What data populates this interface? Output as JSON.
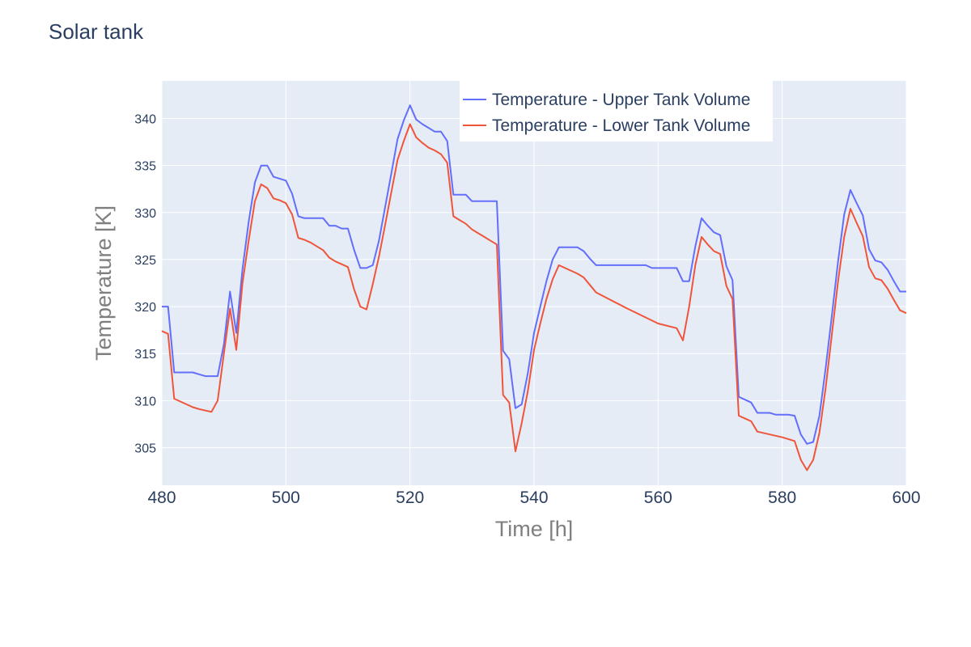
{
  "title": "Solar tank",
  "colors": {
    "upper": "#636efa",
    "lower": "#ef553b",
    "plot_bg": "#e5ecf6",
    "grid": "#ffffff"
  },
  "chart_data": {
    "type": "line",
    "title": "Solar tank",
    "xlabel": "Time [h]",
    "ylabel": "Temperature [K]",
    "xlim": [
      480,
      600
    ],
    "ylim": [
      301,
      344
    ],
    "xticks": [
      480,
      500,
      520,
      540,
      560,
      580,
      600
    ],
    "yticks": [
      305,
      310,
      315,
      320,
      325,
      330,
      335,
      340
    ],
    "grid": true,
    "legend_position": "top-right",
    "series": [
      {
        "name": "Temperature - Upper Tank Volume",
        "color": "#636efa",
        "x": [
          480,
          481,
          482,
          483,
          484,
          485,
          486,
          487,
          488,
          489,
          490,
          491,
          492,
          493,
          494,
          495,
          496,
          497,
          498,
          499,
          500,
          501,
          502,
          503,
          504,
          505,
          506,
          507,
          508,
          509,
          510,
          511,
          512,
          513,
          514,
          515,
          516,
          517,
          518,
          519,
          520,
          521,
          522,
          523,
          524,
          525,
          526,
          527,
          528,
          529,
          530,
          531,
          532,
          533,
          534,
          535,
          536,
          537,
          538,
          539,
          540,
          541,
          542,
          543,
          544,
          545,
          546,
          547,
          548,
          549,
          550,
          551,
          552,
          553,
          554,
          555,
          556,
          557,
          558,
          559,
          560,
          561,
          562,
          563,
          564,
          565,
          566,
          567,
          568,
          569,
          570,
          571,
          572,
          573,
          574,
          575,
          576,
          577,
          578,
          579,
          580,
          581,
          582,
          583,
          584,
          585,
          586,
          587,
          588,
          589,
          590,
          591,
          592,
          593,
          594,
          595,
          596,
          597,
          598,
          599,
          600
        ],
        "y": [
          320.0,
          320.0,
          313.0,
          313.0,
          313.0,
          313.0,
          312.8,
          312.6,
          312.6,
          312.6,
          316.0,
          321.6,
          317.2,
          324.0,
          329.0,
          333.2,
          335.0,
          335.0,
          333.8,
          333.6,
          333.4,
          332.0,
          329.6,
          329.4,
          329.4,
          329.4,
          329.4,
          328.6,
          328.6,
          328.3,
          328.3,
          326.0,
          324.1,
          324.1,
          324.4,
          327.0,
          330.6,
          334.2,
          337.8,
          339.8,
          341.4,
          339.9,
          339.4,
          339.0,
          338.6,
          338.6,
          337.6,
          331.9,
          331.9,
          331.9,
          331.2,
          331.2,
          331.2,
          331.2,
          331.2,
          315.3,
          314.4,
          309.2,
          309.6,
          312.9,
          317.2,
          320.0,
          322.7,
          325.0,
          326.3,
          326.3,
          326.3,
          326.3,
          325.9,
          325.1,
          324.4,
          324.4,
          324.4,
          324.4,
          324.4,
          324.4,
          324.4,
          324.4,
          324.4,
          324.1,
          324.1,
          324.1,
          324.1,
          324.1,
          322.7,
          322.7,
          326.4,
          329.4,
          328.6,
          327.9,
          327.6,
          324.3,
          322.8,
          310.4,
          310.1,
          309.8,
          308.7,
          308.7,
          308.7,
          308.5,
          308.5,
          308.5,
          308.4,
          306.4,
          305.4,
          305.6,
          308.4,
          313.4,
          319.0,
          324.8,
          329.8,
          332.4,
          331.0,
          329.7,
          326.1,
          324.9,
          324.7,
          323.9,
          322.7,
          321.6,
          321.6
        ]
      },
      {
        "name": "Temperature - Lower Tank Volume",
        "color": "#ef553b",
        "x": [
          480,
          481,
          482,
          485,
          486,
          488,
          489,
          490,
          491,
          492,
          493,
          494,
          495,
          496,
          497,
          498,
          499,
          500,
          501,
          502,
          503,
          504,
          505,
          506,
          507,
          508,
          509,
          510,
          511,
          512,
          513,
          514,
          515,
          516,
          517,
          518,
          519,
          520,
          521,
          522,
          523,
          524,
          525,
          526,
          527,
          528,
          529,
          530,
          531,
          532,
          533,
          534,
          535,
          536,
          537,
          538,
          539,
          540,
          541,
          542,
          543,
          544,
          545,
          546,
          547,
          548,
          549,
          550,
          555,
          560,
          563,
          564,
          565,
          566,
          567,
          568,
          569,
          570,
          571,
          572,
          573,
          574,
          575,
          576,
          580,
          582,
          583,
          584,
          585,
          586,
          587,
          588,
          589,
          590,
          591,
          592,
          593,
          594,
          595,
          596,
          597,
          598,
          599,
          600
        ],
        "y": [
          317.4,
          317.1,
          310.2,
          309.3,
          309.1,
          308.8,
          310.0,
          315.0,
          319.8,
          315.4,
          322.5,
          327.0,
          331.2,
          333.0,
          332.6,
          331.5,
          331.3,
          331.0,
          329.8,
          327.3,
          327.1,
          326.8,
          326.4,
          326.0,
          325.2,
          324.8,
          324.5,
          324.2,
          321.8,
          320.0,
          319.7,
          322.4,
          325.3,
          328.7,
          332.2,
          335.6,
          337.6,
          339.4,
          338.0,
          337.4,
          336.9,
          336.6,
          336.2,
          335.3,
          329.6,
          329.2,
          328.8,
          328.2,
          327.8,
          327.4,
          327.0,
          326.6,
          310.6,
          309.8,
          304.6,
          307.6,
          311.0,
          315.4,
          318.2,
          320.8,
          322.9,
          324.4,
          324.1,
          323.8,
          323.5,
          323.1,
          322.3,
          321.5,
          319.8,
          318.2,
          317.7,
          316.4,
          320.0,
          324.4,
          327.4,
          326.6,
          325.9,
          325.6,
          322.2,
          320.8,
          308.4,
          308.1,
          307.8,
          306.7,
          306.1,
          305.7,
          303.7,
          302.6,
          303.7,
          306.6,
          311.3,
          317.0,
          322.7,
          327.4,
          330.4,
          328.9,
          327.5,
          324.2,
          323.0,
          322.8,
          321.9,
          320.7,
          319.6,
          319.3
        ]
      }
    ]
  }
}
